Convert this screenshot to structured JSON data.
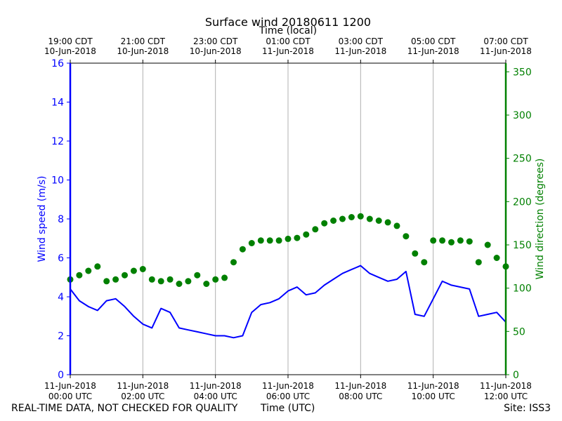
{
  "chart_data": {
    "type": "line",
    "title": "Surface wind 20180611 1200",
    "top_axis_label": "Time (local)",
    "xlabel": "Time (UTC)",
    "ylabel_left": "Wind speed (m/s)",
    "ylabel_right": "Wind direction (degrees)",
    "x_range_hours": [
      0,
      12
    ],
    "ylim_left": [
      0,
      16
    ],
    "ylim_right": [
      0,
      360
    ],
    "grid": "vertical",
    "colors": {
      "speed": "#0000ff",
      "direction": "#008000",
      "grid": "#b0b0b0"
    },
    "bottom_ticks": [
      {
        "hour": 0,
        "date": "11-Jun-2018",
        "time": "00:00 UTC"
      },
      {
        "hour": 2,
        "date": "11-Jun-2018",
        "time": "02:00 UTC"
      },
      {
        "hour": 4,
        "date": "11-Jun-2018",
        "time": "04:00 UTC"
      },
      {
        "hour": 6,
        "date": "11-Jun-2018",
        "time": "06:00 UTC"
      },
      {
        "hour": 8,
        "date": "11-Jun-2018",
        "time": "08:00 UTC"
      },
      {
        "hour": 10,
        "date": "11-Jun-2018",
        "time": "10:00 UTC"
      },
      {
        "hour": 12,
        "date": "11-Jun-2018",
        "time": "12:00 UTC"
      }
    ],
    "top_ticks": [
      {
        "hour": 0,
        "time": "19:00 CDT",
        "date": "10-Jun-2018"
      },
      {
        "hour": 2,
        "time": "21:00 CDT",
        "date": "10-Jun-2018"
      },
      {
        "hour": 4,
        "time": "23:00 CDT",
        "date": "10-Jun-2018"
      },
      {
        "hour": 6,
        "time": "01:00 CDT",
        "date": "11-Jun-2018"
      },
      {
        "hour": 8,
        "time": "03:00 CDT",
        "date": "11-Jun-2018"
      },
      {
        "hour": 10,
        "time": "05:00 CDT",
        "date": "11-Jun-2018"
      },
      {
        "hour": 12,
        "time": "07:00 CDT",
        "date": "11-Jun-2018"
      }
    ],
    "left_ticks": [
      0,
      2,
      4,
      6,
      8,
      10,
      12,
      14,
      16
    ],
    "right_ticks": [
      0,
      50,
      100,
      150,
      200,
      250,
      300,
      350
    ],
    "series": [
      {
        "name": "Wind speed",
        "axis": "left",
        "style": "line",
        "x": [
          0.0,
          0.25,
          0.5,
          0.75,
          1.0,
          1.25,
          1.5,
          1.75,
          2.0,
          2.25,
          2.5,
          2.75,
          3.0,
          3.25,
          3.5,
          3.75,
          4.0,
          4.25,
          4.5,
          4.75,
          5.0,
          5.25,
          5.5,
          5.75,
          6.0,
          6.25,
          6.5,
          6.75,
          7.0,
          7.25,
          7.5,
          7.75,
          8.0,
          8.25,
          8.5,
          8.75,
          9.0,
          9.25,
          9.5,
          9.75,
          10.0,
          10.25,
          10.5,
          10.75,
          11.0,
          11.25,
          11.5,
          11.75,
          12.0
        ],
        "values": [
          4.4,
          3.8,
          3.5,
          3.3,
          3.8,
          3.9,
          3.5,
          3.0,
          2.6,
          2.4,
          3.4,
          3.2,
          2.4,
          2.3,
          2.2,
          2.1,
          2.0,
          2.0,
          1.9,
          2.0,
          3.2,
          3.6,
          3.7,
          3.9,
          4.3,
          4.5,
          4.1,
          4.2,
          4.6,
          4.9,
          5.2,
          5.4,
          5.6,
          5.2,
          5.0,
          4.8,
          4.9,
          5.3,
          3.1,
          3.0,
          3.9,
          4.8,
          4.6,
          4.5,
          4.4,
          3.0,
          3.1,
          3.2,
          2.7
        ]
      },
      {
        "name": "Wind direction",
        "axis": "right",
        "style": "scatter",
        "x": [
          0.0,
          0.25,
          0.5,
          0.75,
          1.0,
          1.25,
          1.5,
          1.75,
          2.0,
          2.25,
          2.5,
          2.75,
          3.0,
          3.25,
          3.5,
          3.75,
          4.0,
          4.25,
          4.5,
          4.75,
          5.0,
          5.25,
          5.5,
          5.75,
          6.0,
          6.25,
          6.5,
          6.75,
          7.0,
          7.25,
          7.5,
          7.75,
          8.0,
          8.25,
          8.5,
          8.75,
          9.0,
          9.25,
          9.5,
          9.75,
          10.0,
          10.25,
          10.5,
          10.75,
          11.0,
          11.25,
          11.5,
          11.75,
          12.0
        ],
        "values": [
          110,
          115,
          120,
          125,
          108,
          110,
          115,
          120,
          122,
          110,
          108,
          110,
          105,
          108,
          115,
          105,
          110,
          112,
          130,
          145,
          152,
          155,
          155,
          155,
          157,
          158,
          162,
          168,
          175,
          178,
          180,
          182,
          183,
          180,
          178,
          176,
          172,
          160,
          140,
          130,
          155,
          155,
          153,
          155,
          154,
          130,
          150,
          135,
          125
        ]
      }
    ]
  },
  "footer": {
    "left": "REAL-TIME DATA, NOT CHECKED FOR QUALITY",
    "center": "Time (UTC)",
    "right": "Site: ISS3"
  }
}
